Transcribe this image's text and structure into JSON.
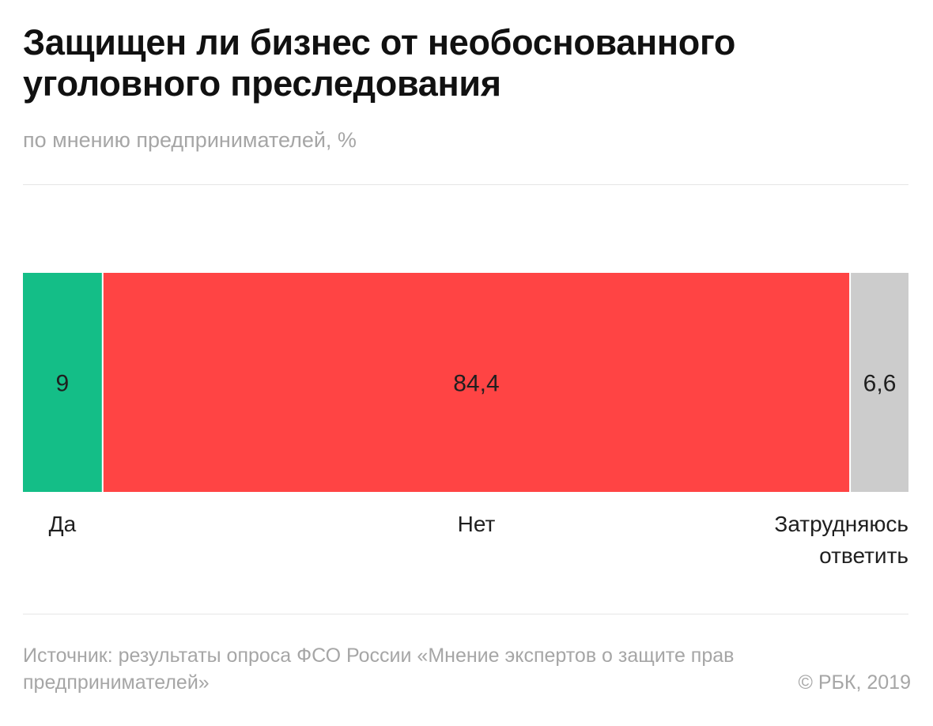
{
  "header": {
    "title": "Защищен ли бизнес от необоснованного уголовного преследования",
    "subtitle": "по мнению предпринимателей, %"
  },
  "footer": {
    "source": "Источник: результаты опроса ФСО России «Мнение экспертов о защите прав предпринимателей»",
    "copyright": "© РБК, 2019"
  },
  "chart_data": {
    "type": "bar",
    "orientation": "horizontal-stacked",
    "title": "Защищен ли бизнес от необоснованного уголовного преследования",
    "subtitle": "по мнению предпринимателей, %",
    "categories": [
      "Да",
      "Нет",
      "Затрудняюсь ответить"
    ],
    "values": [
      9,
      84.4,
      6.6
    ],
    "value_labels": [
      "9",
      "84,4",
      "6,6"
    ],
    "colors": [
      "#14be87",
      "#ff4444",
      "#cccccc"
    ],
    "xlim": [
      0,
      100
    ],
    "legend": "none",
    "grid": false
  }
}
